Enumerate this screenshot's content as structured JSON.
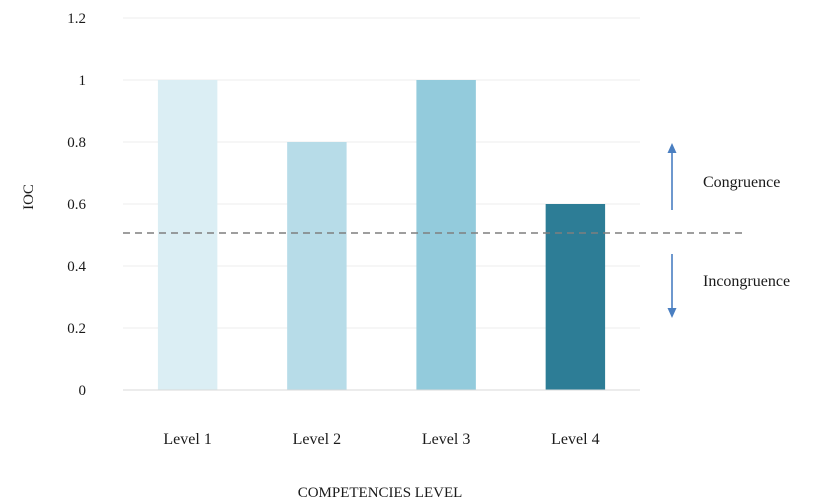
{
  "chart_data": {
    "type": "bar",
    "title": "",
    "xlabel": "COMPETENCIES LEVEL",
    "ylabel": "IOC",
    "ylim": [
      0,
      1.2
    ],
    "yticks": [
      "0",
      "0.2",
      "0.4",
      "0.6",
      "0.8",
      "1",
      "1.2"
    ],
    "categories": [
      "Level 1",
      "Level 2",
      "Level 3",
      "Level 4"
    ],
    "values": [
      1,
      0.8,
      1,
      0.6
    ],
    "bar_colors": [
      "#dbeef4",
      "#b7dce8",
      "#93cbdc",
      "#2d7d96"
    ],
    "grid": true,
    "threshold": {
      "value": 0.5,
      "style": "dashed",
      "color": "#7f7f7f"
    },
    "annotations": [
      {
        "label": "Congruence",
        "direction": "up"
      },
      {
        "label": "Incongruence",
        "direction": "down"
      }
    ],
    "arrow_color": "#4a7fc1"
  }
}
